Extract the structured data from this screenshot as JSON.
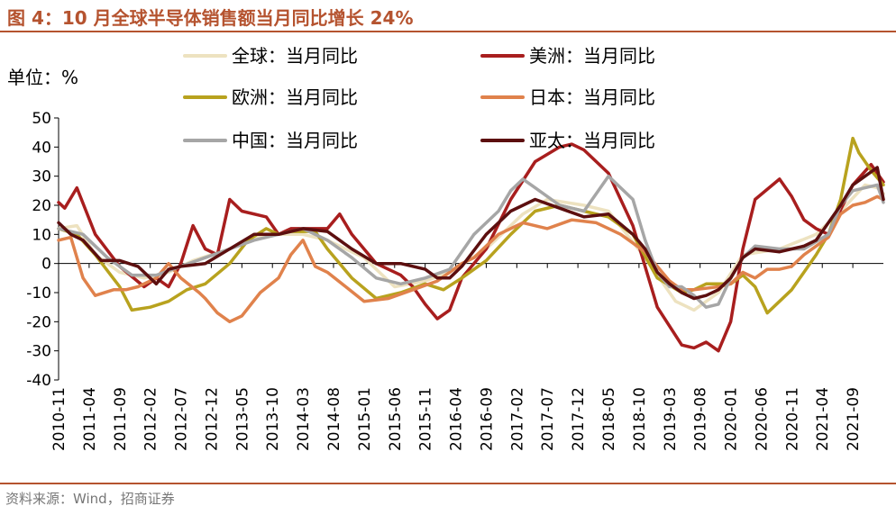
{
  "page": {
    "title": "图 4：10 月全球半导体销售额当月同比增长 24%",
    "source": "资料来源：Wind，招商证券"
  },
  "chart_data": {
    "type": "line",
    "title": "图 4：10 月全球半导体销售额当月同比增长 24%",
    "ylabel": "单位：%",
    "ylim": [
      -40,
      50
    ],
    "yticks": [
      50,
      40,
      30,
      20,
      10,
      0,
      -10,
      -20,
      -30,
      -40
    ],
    "x_tick_labels": [
      "2010-11",
      "2011-04",
      "2011-09",
      "2012-02",
      "2012-07",
      "2012-12",
      "2013-05",
      "2013-10",
      "2014-03",
      "2014-08",
      "2015-01",
      "2015-06",
      "2015-11",
      "2016-04",
      "2016-09",
      "2017-02",
      "2017-07",
      "2017-12",
      "2018-05",
      "2018-10",
      "2019-03",
      "2019-08",
      "2020-01",
      "2020-06",
      "2020-11",
      "2021-04",
      "2021-09"
    ],
    "x_start": "2010-11",
    "x_end": "2021-10",
    "series": [
      {
        "name": "全球：当月同比",
        "color": "#ede2c0",
        "width": 3.5,
        "points": [
          [
            0,
            12
          ],
          [
            3,
            13
          ],
          [
            6,
            3
          ],
          [
            10,
            -3
          ],
          [
            14,
            -5
          ],
          [
            18,
            -3
          ],
          [
            22,
            1
          ],
          [
            28,
            5
          ],
          [
            34,
            10
          ],
          [
            40,
            10
          ],
          [
            44,
            8
          ],
          [
            50,
            2
          ],
          [
            55,
            -8
          ],
          [
            60,
            -6
          ],
          [
            64,
            -3
          ],
          [
            70,
            5
          ],
          [
            76,
            17
          ],
          [
            80,
            22
          ],
          [
            86,
            20
          ],
          [
            90,
            18
          ],
          [
            96,
            2
          ],
          [
            101,
            -13
          ],
          [
            104,
            -16
          ],
          [
            108,
            -10
          ],
          [
            112,
            3
          ],
          [
            118,
            5
          ],
          [
            124,
            10
          ],
          [
            128,
            18
          ],
          [
            132,
            27
          ],
          [
            134,
            26
          ],
          [
            135,
            24
          ]
        ]
      },
      {
        "name": "美洲：当月同比",
        "color": "#a81e1e",
        "width": 3.5,
        "points": [
          [
            0,
            21
          ],
          [
            1,
            19
          ],
          [
            3,
            26
          ],
          [
            6,
            10
          ],
          [
            10,
            -1
          ],
          [
            14,
            -8
          ],
          [
            16,
            -5
          ],
          [
            18,
            -8
          ],
          [
            20,
            0
          ],
          [
            22,
            13
          ],
          [
            24,
            5
          ],
          [
            26,
            3
          ],
          [
            28,
            22
          ],
          [
            30,
            18
          ],
          [
            34,
            16
          ],
          [
            36,
            10
          ],
          [
            38,
            12
          ],
          [
            40,
            12
          ],
          [
            44,
            12
          ],
          [
            46,
            17
          ],
          [
            48,
            10
          ],
          [
            52,
            0
          ],
          [
            56,
            -4
          ],
          [
            58,
            -8
          ],
          [
            60,
            -14
          ],
          [
            62,
            -19
          ],
          [
            64,
            -16
          ],
          [
            66,
            -5
          ],
          [
            70,
            5
          ],
          [
            74,
            22
          ],
          [
            78,
            35
          ],
          [
            82,
            40
          ],
          [
            84,
            41
          ],
          [
            86,
            39
          ],
          [
            90,
            31
          ],
          [
            94,
            13
          ],
          [
            98,
            -15
          ],
          [
            102,
            -28
          ],
          [
            104,
            -29
          ],
          [
            106,
            -27
          ],
          [
            108,
            -30
          ],
          [
            110,
            -20
          ],
          [
            112,
            5
          ],
          [
            114,
            22
          ],
          [
            118,
            29
          ],
          [
            120,
            23
          ],
          [
            122,
            15
          ],
          [
            124,
            12
          ],
          [
            126,
            10
          ],
          [
            130,
            27
          ],
          [
            133,
            34
          ],
          [
            135,
            28
          ]
        ]
      },
      {
        "name": "欧洲：当月同比",
        "color": "#b8a21e",
        "width": 3.5,
        "points": [
          [
            0,
            12
          ],
          [
            3,
            10
          ],
          [
            6,
            3
          ],
          [
            10,
            -8
          ],
          [
            12,
            -16
          ],
          [
            15,
            -15
          ],
          [
            18,
            -13
          ],
          [
            21,
            -9
          ],
          [
            24,
            -7
          ],
          [
            28,
            0
          ],
          [
            31,
            8
          ],
          [
            34,
            12
          ],
          [
            36,
            10
          ],
          [
            38,
            11
          ],
          [
            40,
            11
          ],
          [
            42,
            11
          ],
          [
            44,
            5
          ],
          [
            48,
            -5
          ],
          [
            52,
            -12
          ],
          [
            56,
            -10
          ],
          [
            60,
            -7
          ],
          [
            63,
            -9
          ],
          [
            66,
            -5
          ],
          [
            70,
            1
          ],
          [
            74,
            10
          ],
          [
            78,
            18
          ],
          [
            82,
            20
          ],
          [
            86,
            18
          ],
          [
            90,
            16
          ],
          [
            94,
            10
          ],
          [
            98,
            -5
          ],
          [
            102,
            -10
          ],
          [
            104,
            -9
          ],
          [
            106,
            -7
          ],
          [
            110,
            -7
          ],
          [
            112,
            -4
          ],
          [
            114,
            -8
          ],
          [
            116,
            -17
          ],
          [
            118,
            -13
          ],
          [
            120,
            -9
          ],
          [
            122,
            -3
          ],
          [
            124,
            3
          ],
          [
            126,
            10
          ],
          [
            128,
            22
          ],
          [
            130,
            43
          ],
          [
            131,
            38
          ],
          [
            133,
            32
          ],
          [
            135,
            27
          ]
        ]
      },
      {
        "name": "日本：当月同比",
        "color": "#e0824c",
        "width": 3.5,
        "points": [
          [
            0,
            8
          ],
          [
            2,
            9
          ],
          [
            4,
            -5
          ],
          [
            6,
            -11
          ],
          [
            9,
            -9
          ],
          [
            11,
            -9
          ],
          [
            13,
            -8
          ],
          [
            16,
            -5
          ],
          [
            18,
            0
          ],
          [
            20,
            -5
          ],
          [
            23,
            -10
          ],
          [
            24,
            -12
          ],
          [
            26,
            -17
          ],
          [
            28,
            -20
          ],
          [
            30,
            -18
          ],
          [
            33,
            -10
          ],
          [
            36,
            -5
          ],
          [
            38,
            3
          ],
          [
            40,
            8
          ],
          [
            42,
            -1
          ],
          [
            44,
            -3
          ],
          [
            47,
            -8
          ],
          [
            50,
            -13
          ],
          [
            54,
            -12
          ],
          [
            58,
            -9
          ],
          [
            62,
            -6
          ],
          [
            64,
            -3
          ],
          [
            66,
            0
          ],
          [
            68,
            2
          ],
          [
            72,
            10
          ],
          [
            76,
            14
          ],
          [
            80,
            12
          ],
          [
            84,
            15
          ],
          [
            88,
            14
          ],
          [
            92,
            10
          ],
          [
            96,
            4
          ],
          [
            100,
            -6
          ],
          [
            102,
            -9
          ],
          [
            104,
            -9
          ],
          [
            108,
            -8
          ],
          [
            110,
            -7
          ],
          [
            112,
            -3
          ],
          [
            114,
            -5
          ],
          [
            116,
            -2
          ],
          [
            118,
            -2
          ],
          [
            120,
            -1
          ],
          [
            122,
            3
          ],
          [
            124,
            6
          ],
          [
            126,
            9
          ],
          [
            128,
            17
          ],
          [
            130,
            20
          ],
          [
            132,
            21
          ],
          [
            134,
            23
          ],
          [
            135,
            22
          ]
        ]
      },
      {
        "name": "中国：当月同比",
        "color": "#a6a6a6",
        "width": 3.5,
        "points": [
          [
            0,
            12
          ],
          [
            4,
            10
          ],
          [
            8,
            2
          ],
          [
            12,
            -4
          ],
          [
            16,
            -4
          ],
          [
            20,
            -1
          ],
          [
            24,
            2
          ],
          [
            28,
            5
          ],
          [
            32,
            8
          ],
          [
            36,
            10
          ],
          [
            40,
            12
          ],
          [
            44,
            8
          ],
          [
            48,
            2
          ],
          [
            52,
            -5
          ],
          [
            56,
            -7
          ],
          [
            60,
            -5
          ],
          [
            64,
            -2
          ],
          [
            68,
            10
          ],
          [
            72,
            18
          ],
          [
            74,
            25
          ],
          [
            76,
            29
          ],
          [
            78,
            26
          ],
          [
            82,
            20
          ],
          [
            86,
            18
          ],
          [
            90,
            30
          ],
          [
            94,
            22
          ],
          [
            96,
            8
          ],
          [
            98,
            -3
          ],
          [
            100,
            -8
          ],
          [
            102,
            -8
          ],
          [
            104,
            -11
          ],
          [
            106,
            -15
          ],
          [
            108,
            -14
          ],
          [
            110,
            -5
          ],
          [
            112,
            2
          ],
          [
            114,
            6
          ],
          [
            118,
            5
          ],
          [
            122,
            5
          ],
          [
            126,
            10
          ],
          [
            128,
            20
          ],
          [
            130,
            25
          ],
          [
            132,
            26
          ],
          [
            134,
            27
          ],
          [
            135,
            21
          ]
        ]
      },
      {
        "name": "亚太：当月同比",
        "color": "#5c0f0f",
        "width": 3.5,
        "points": [
          [
            0,
            14
          ],
          [
            2,
            10
          ],
          [
            4,
            8
          ],
          [
            7,
            1
          ],
          [
            10,
            1
          ],
          [
            13,
            -1
          ],
          [
            16,
            -7
          ],
          [
            18,
            -2
          ],
          [
            20,
            -1
          ],
          [
            24,
            0
          ],
          [
            28,
            5
          ],
          [
            32,
            10
          ],
          [
            36,
            10
          ],
          [
            40,
            12
          ],
          [
            44,
            11
          ],
          [
            48,
            5
          ],
          [
            52,
            0
          ],
          [
            56,
            0
          ],
          [
            60,
            -2
          ],
          [
            62,
            -5
          ],
          [
            64,
            -5
          ],
          [
            66,
            -1
          ],
          [
            70,
            10
          ],
          [
            74,
            18
          ],
          [
            78,
            22
          ],
          [
            82,
            19
          ],
          [
            86,
            16
          ],
          [
            90,
            17
          ],
          [
            94,
            10
          ],
          [
            96,
            5
          ],
          [
            98,
            -3
          ],
          [
            100,
            -7
          ],
          [
            102,
            -10
          ],
          [
            104,
            -12
          ],
          [
            106,
            -11
          ],
          [
            108,
            -9
          ],
          [
            110,
            -5
          ],
          [
            112,
            2
          ],
          [
            114,
            5
          ],
          [
            118,
            4
          ],
          [
            120,
            5
          ],
          [
            122,
            6
          ],
          [
            124,
            8
          ],
          [
            126,
            14
          ],
          [
            128,
            20
          ],
          [
            130,
            27
          ],
          [
            132,
            30
          ],
          [
            134,
            33
          ],
          [
            135,
            22
          ]
        ]
      }
    ],
    "legend": [
      "全球：当月同比",
      "美洲：当月同比",
      "欧洲：当月同比",
      "日本：当月同比",
      "中国：当月同比",
      "亚太：当月同比"
    ]
  }
}
